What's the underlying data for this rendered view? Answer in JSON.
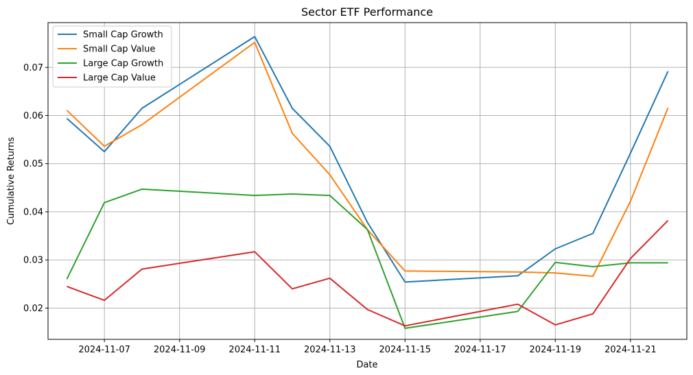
{
  "chart_data": {
    "type": "line",
    "title": "Sector ETF Performance",
    "xlabel": "Date",
    "ylabel": "Cumulative Returns",
    "x": [
      "2024-11-06",
      "2024-11-07",
      "2024-11-08",
      "2024-11-11",
      "2024-11-12",
      "2024-11-13",
      "2024-11-14",
      "2024-11-15",
      "2024-11-18",
      "2024-11-19",
      "2024-11-20",
      "2024-11-21",
      "2024-11-22"
    ],
    "xlim": [
      "2024-11-05T12:00",
      "2024-11-22T12:00"
    ],
    "ylim": [
      0.0135,
      0.0793
    ],
    "x_ticks": [
      "2024-11-07",
      "2024-11-09",
      "2024-11-11",
      "2024-11-13",
      "2024-11-15",
      "2024-11-17",
      "2024-11-19",
      "2024-11-21"
    ],
    "y_ticks": [
      0.02,
      0.03,
      0.04,
      0.05,
      0.06,
      0.07
    ],
    "y_tick_labels": [
      "0.02",
      "0.03",
      "0.04",
      "0.05",
      "0.06",
      "0.07"
    ],
    "grid": true,
    "legend": "top-left",
    "series": [
      {
        "name": "Small Cap Growth",
        "color": "#1f77b4",
        "values": [
          0.0594,
          0.0525,
          0.0615,
          0.0764,
          0.0615,
          0.0536,
          0.0378,
          0.0254,
          0.0267,
          0.0323,
          0.0355,
          0.0522,
          0.0692
        ]
      },
      {
        "name": "Small Cap Value",
        "color": "#ff7f0e",
        "values": [
          0.0611,
          0.0536,
          0.0581,
          0.0752,
          0.0563,
          0.0477,
          0.0363,
          0.0277,
          0.0275,
          0.0273,
          0.0266,
          0.0422,
          0.0616
        ]
      },
      {
        "name": "Large Cap Growth",
        "color": "#2ca02c",
        "values": [
          0.026,
          0.0419,
          0.0447,
          0.0434,
          0.0437,
          0.0434,
          0.0363,
          0.0158,
          0.0193,
          0.0295,
          0.0286,
          0.0294,
          0.0294
        ]
      },
      {
        "name": "Large Cap Value",
        "color": "#d62728",
        "values": [
          0.0245,
          0.0216,
          0.0281,
          0.0317,
          0.024,
          0.0262,
          0.0197,
          0.0163,
          0.0208,
          0.0165,
          0.0188,
          0.0303,
          0.0382
        ]
      }
    ]
  }
}
